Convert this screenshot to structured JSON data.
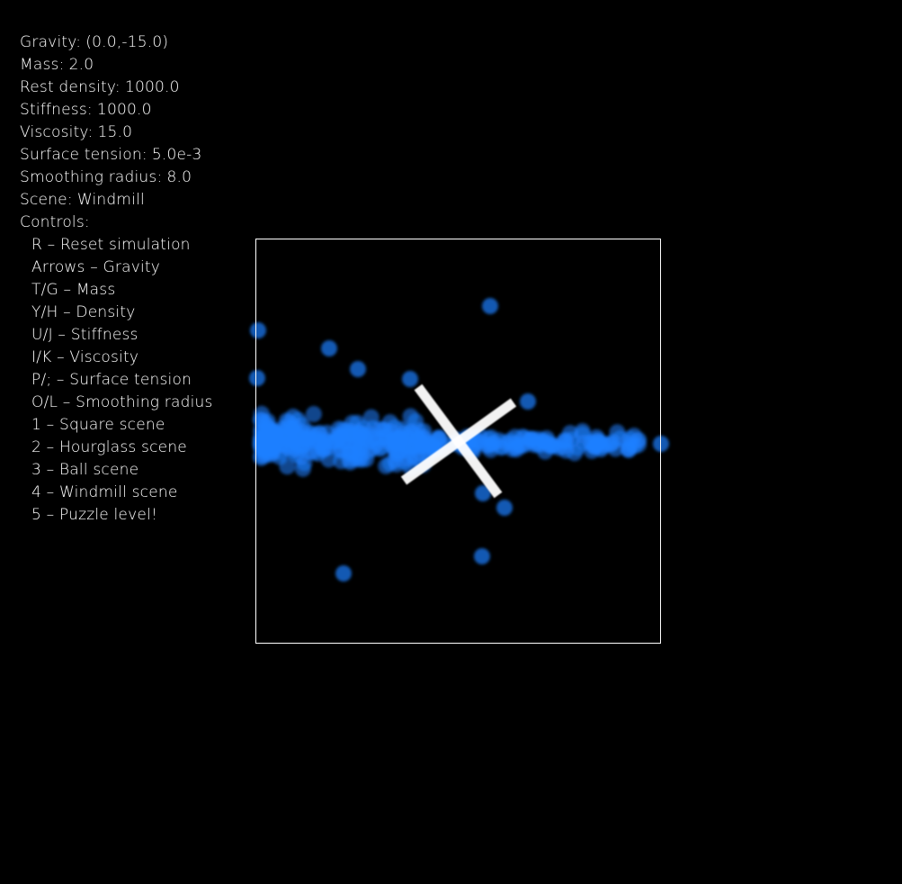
{
  "stats": [
    {
      "label": "Gravity:",
      "value": "(0.0,-15.0)"
    },
    {
      "label": "Mass:",
      "value": "2.0"
    },
    {
      "label": "Rest density:",
      "value": "1000.0"
    },
    {
      "label": "Stiffness:",
      "value": "1000.0"
    },
    {
      "label": "Viscosity:",
      "value": "15.0"
    },
    {
      "label": "Surface tension:",
      "value": "5.0e-3"
    },
    {
      "label": "Smoothing radius:",
      "value": "8.0"
    },
    {
      "label": "Scene:",
      "value": "Windmill"
    }
  ],
  "controls_heading": "Controls:",
  "controls": [
    {
      "key": "R",
      "action": "Reset simulation"
    },
    {
      "key": "Arrows",
      "action": "Gravity"
    },
    {
      "key": "T/G",
      "action": "Mass"
    },
    {
      "key": "Y/H",
      "action": "Density"
    },
    {
      "key": "U/J",
      "action": "Stiffness"
    },
    {
      "key": "I/K",
      "action": "Viscosity"
    },
    {
      "key": "P/;",
      "action": "Surface tension"
    },
    {
      "key": "O/L",
      "action": "Smoothing radius"
    },
    {
      "key": "1",
      "action": "Square scene"
    },
    {
      "key": "2",
      "action": "Hourglass scene"
    },
    {
      "key": "3",
      "action": "Ball scene"
    },
    {
      "key": "4",
      "action": "Windmill scene"
    },
    {
      "key": "5",
      "action": "Puzzle level!"
    }
  ],
  "colors": {
    "background": "#000000",
    "text": "#ffffff",
    "container_border": "#ffffff",
    "particle": "#1e7fff",
    "windmill_blade": "#ffffff"
  }
}
